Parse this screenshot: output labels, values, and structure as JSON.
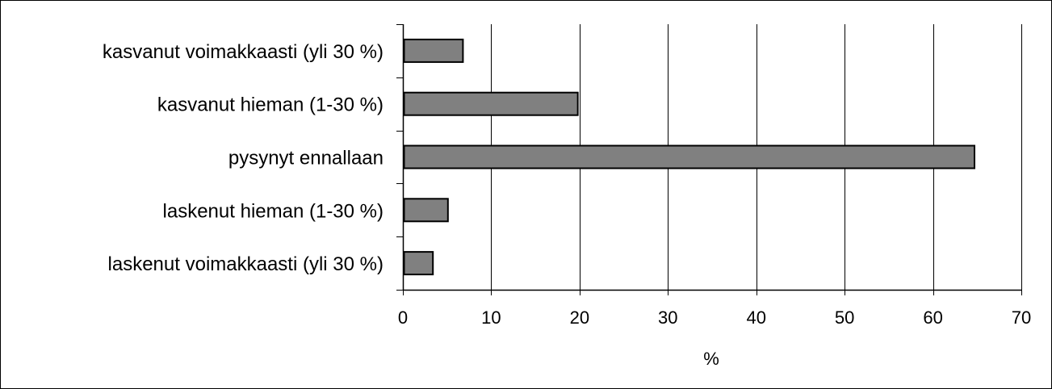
{
  "chart_data": {
    "type": "bar",
    "orientation": "horizontal",
    "categories": [
      "kasvanut voimakkaasti (yli 30 %)",
      "kasvanut hieman (1-30 %)",
      "pysynyt ennallaan",
      "laskenut hieman (1-30 %)",
      "laskenut voimakkaasti (yli 30 %)"
    ],
    "values": [
      6.8,
      19.8,
      64.7,
      5.1,
      3.4
    ],
    "xlabel": "%",
    "ylabel": "",
    "xlim": [
      0,
      70
    ],
    "xticks": [
      "0",
      "10",
      "20",
      "30",
      "40",
      "50",
      "60",
      "70"
    ],
    "grid": "vertical",
    "bar_color": "#808080",
    "bar_border_color": "#000000",
    "grid_color": "#000000"
  }
}
